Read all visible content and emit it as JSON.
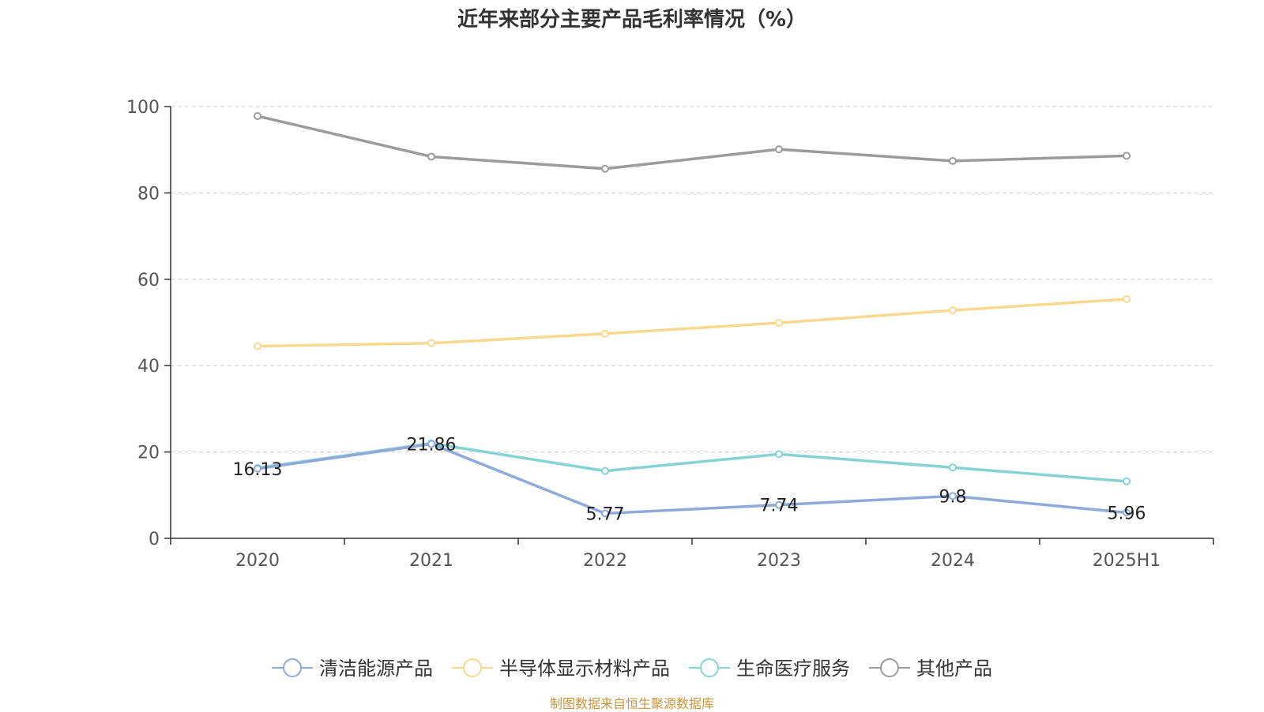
{
  "chart_data": {
    "type": "line",
    "title": "近年来部分主要产品毛利率情况（%）",
    "categories": [
      "2020",
      "2021",
      "2022",
      "2023",
      "2024",
      "2025H1"
    ],
    "ylim": [
      0,
      100
    ],
    "yticks": [
      0,
      20,
      40,
      60,
      80,
      100
    ],
    "grid": true,
    "legend_position": "bottom",
    "series": [
      {
        "name": "清洁能源产品",
        "color": "#8eaad8",
        "values": [
          16.13,
          21.86,
          5.77,
          7.74,
          9.8,
          5.96
        ],
        "data_labels": [
          "16.13",
          "21.86",
          "5.77",
          "7.74",
          "9.8",
          "5.96"
        ]
      },
      {
        "name": "半导体显示材料产品",
        "color": "#fbd88f",
        "values": [
          44.5,
          45.2,
          47.4,
          49.9,
          52.8,
          55.4
        ]
      },
      {
        "name": "生命医疗服务",
        "color": "#86d3d3",
        "values": [
          16.3,
          22.0,
          15.6,
          19.5,
          16.4,
          13.2
        ]
      },
      {
        "name": "其他产品",
        "color": "#9b9b9b",
        "values": [
          97.8,
          88.4,
          85.6,
          90.1,
          87.4,
          88.6
        ]
      }
    ]
  },
  "source_note": "制图数据来自恒生聚源数据库"
}
